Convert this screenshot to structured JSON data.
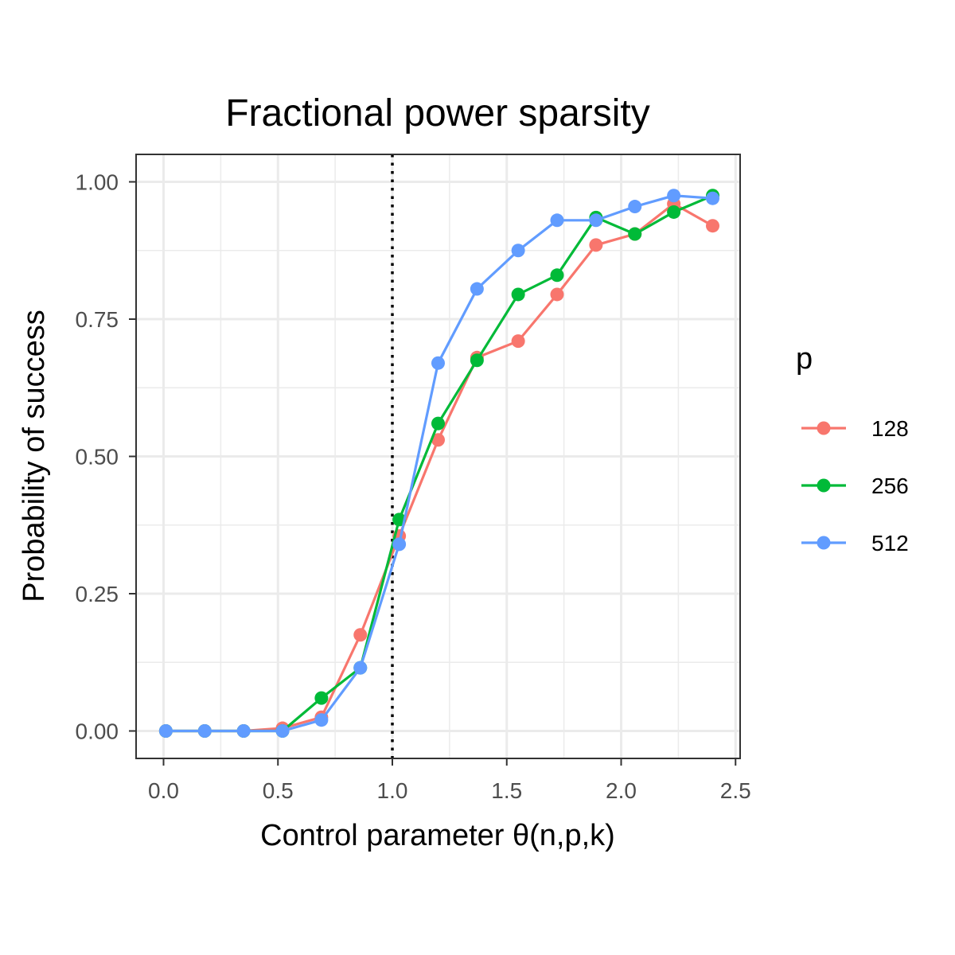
{
  "chart_data": {
    "type": "line",
    "title": "Fractional power sparsity",
    "xlabel": "Control parameter θ(n,p,k)",
    "ylabel": "Probability of success",
    "xlim": [
      -0.12,
      2.52
    ],
    "ylim": [
      -0.05,
      1.05
    ],
    "x_ticks": [
      0.0,
      0.5,
      1.0,
      1.5,
      2.0,
      2.5
    ],
    "x_tick_labels": [
      "0.0",
      "0.5",
      "1.0",
      "1.5",
      "2.0",
      "2.5"
    ],
    "y_ticks": [
      0.0,
      0.25,
      0.5,
      0.75,
      1.0
    ],
    "y_tick_labels": [
      "0.00",
      "0.25",
      "0.50",
      "0.75",
      "1.00"
    ],
    "grid": true,
    "reference_line": {
      "x": 1.0,
      "style": "dotted"
    },
    "legend": {
      "title": "p",
      "position": "right"
    },
    "series": [
      {
        "name": "128",
        "color": "#F8766D",
        "x": [
          0.01,
          0.18,
          0.35,
          0.52,
          0.69,
          0.86,
          1.03,
          1.2,
          1.37,
          1.55,
          1.72,
          1.89,
          2.06,
          2.23,
          2.4
        ],
        "y": [
          0.0,
          0.0,
          0.0,
          0.005,
          0.025,
          0.175,
          0.355,
          0.53,
          0.68,
          0.71,
          0.795,
          0.885,
          0.905,
          0.96,
          0.92
        ]
      },
      {
        "name": "256",
        "color": "#00BA38",
        "x": [
          0.01,
          0.18,
          0.35,
          0.52,
          0.69,
          0.86,
          1.03,
          1.2,
          1.37,
          1.55,
          1.72,
          1.89,
          2.06,
          2.23,
          2.4
        ],
        "y": [
          0.0,
          0.0,
          0.0,
          0.0,
          0.06,
          0.115,
          0.385,
          0.56,
          0.675,
          0.795,
          0.83,
          0.935,
          0.905,
          0.945,
          0.975
        ]
      },
      {
        "name": "512",
        "color": "#619CFF",
        "x": [
          0.01,
          0.18,
          0.35,
          0.52,
          0.69,
          0.86,
          1.03,
          1.2,
          1.37,
          1.55,
          1.72,
          1.89,
          2.06,
          2.23,
          2.4
        ],
        "y": [
          0.0,
          0.0,
          0.0,
          0.0,
          0.02,
          0.115,
          0.34,
          0.67,
          0.805,
          0.875,
          0.93,
          0.93,
          0.955,
          0.975,
          0.97
        ]
      }
    ]
  }
}
